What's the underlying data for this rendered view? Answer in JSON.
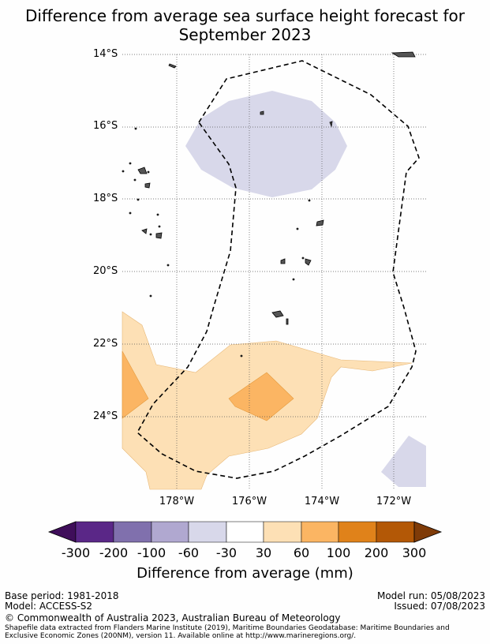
{
  "title_line1": "Difference from average sea surface height forecast for",
  "title_line2": "September 2023",
  "lat_labels": [
    "14°S",
    "16°S",
    "18°S",
    "20°S",
    "22°S",
    "24°S"
  ],
  "lon_labels": [
    "178°W",
    "176°W",
    "174°W",
    "172°W"
  ],
  "colorbar": {
    "ticks": [
      "-300",
      "-200",
      "-100",
      "-60",
      "-30",
      "30",
      "60",
      "100",
      "200",
      "300"
    ],
    "colors": [
      "#3f0e5a",
      "#5a2787",
      "#8070ad",
      "#b0a8d0",
      "#d8d8ea",
      "#ffffff",
      "#fde0b5",
      "#fbb563",
      "#e0821a",
      "#b35806",
      "#7f3b08"
    ],
    "label": "Difference from average (mm)"
  },
  "footer": {
    "base_period": "Base period: 1981-2018",
    "model": "Model: ACCESS-S2",
    "model_run": "Model run: 05/08/2023",
    "issued": "Issued: 07/08/2023",
    "copyright": "© Commonwealth of Australia 2023, Australian Bureau of Meteorology",
    "shapefile_note": "Shapefile data extracted from Flanders Marine Institute (2019), Maritime Boundaries Geodatabase: Maritime Boundaries and Exclusive Economic Zones (200NM), version 11. Available online at http://www.marineregions.org/."
  }
}
